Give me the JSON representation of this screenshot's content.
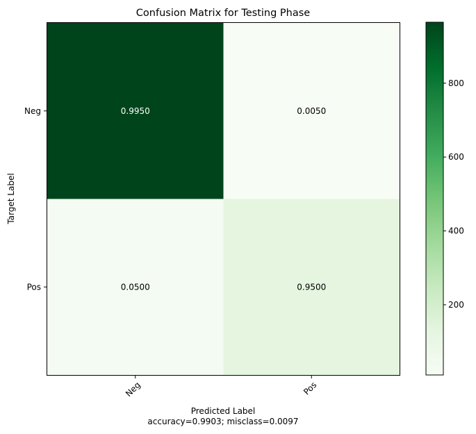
{
  "chart_data": {
    "type": "heatmap",
    "title": "Confusion Matrix for Testing Phase",
    "xlabel": "Predicted Label",
    "xlabel_sub": "accuracy=0.9903; misclass=0.0097",
    "ylabel": "Target Label",
    "x_categories": [
      "Neg",
      "Pos"
    ],
    "y_categories": [
      "Neg",
      "Pos"
    ],
    "cell_labels": [
      [
        "0.9950",
        "0.0050"
      ],
      [
        "0.0500",
        "0.9500"
      ]
    ],
    "cell_colors": [
      [
        "#00441b",
        "#f7fcf5"
      ],
      [
        "#f4fbf2",
        "#e5f5e0"
      ]
    ],
    "cell_text_colors": [
      [
        "#ffffff",
        "#000000"
      ],
      [
        "#000000",
        "#000000"
      ]
    ],
    "colorbar": {
      "cmap": "Greens",
      "range": [
        10,
        965
      ],
      "ticks": [
        200,
        400,
        600,
        800
      ],
      "tick_labels": [
        "200",
        "400",
        "600",
        "800"
      ]
    }
  }
}
